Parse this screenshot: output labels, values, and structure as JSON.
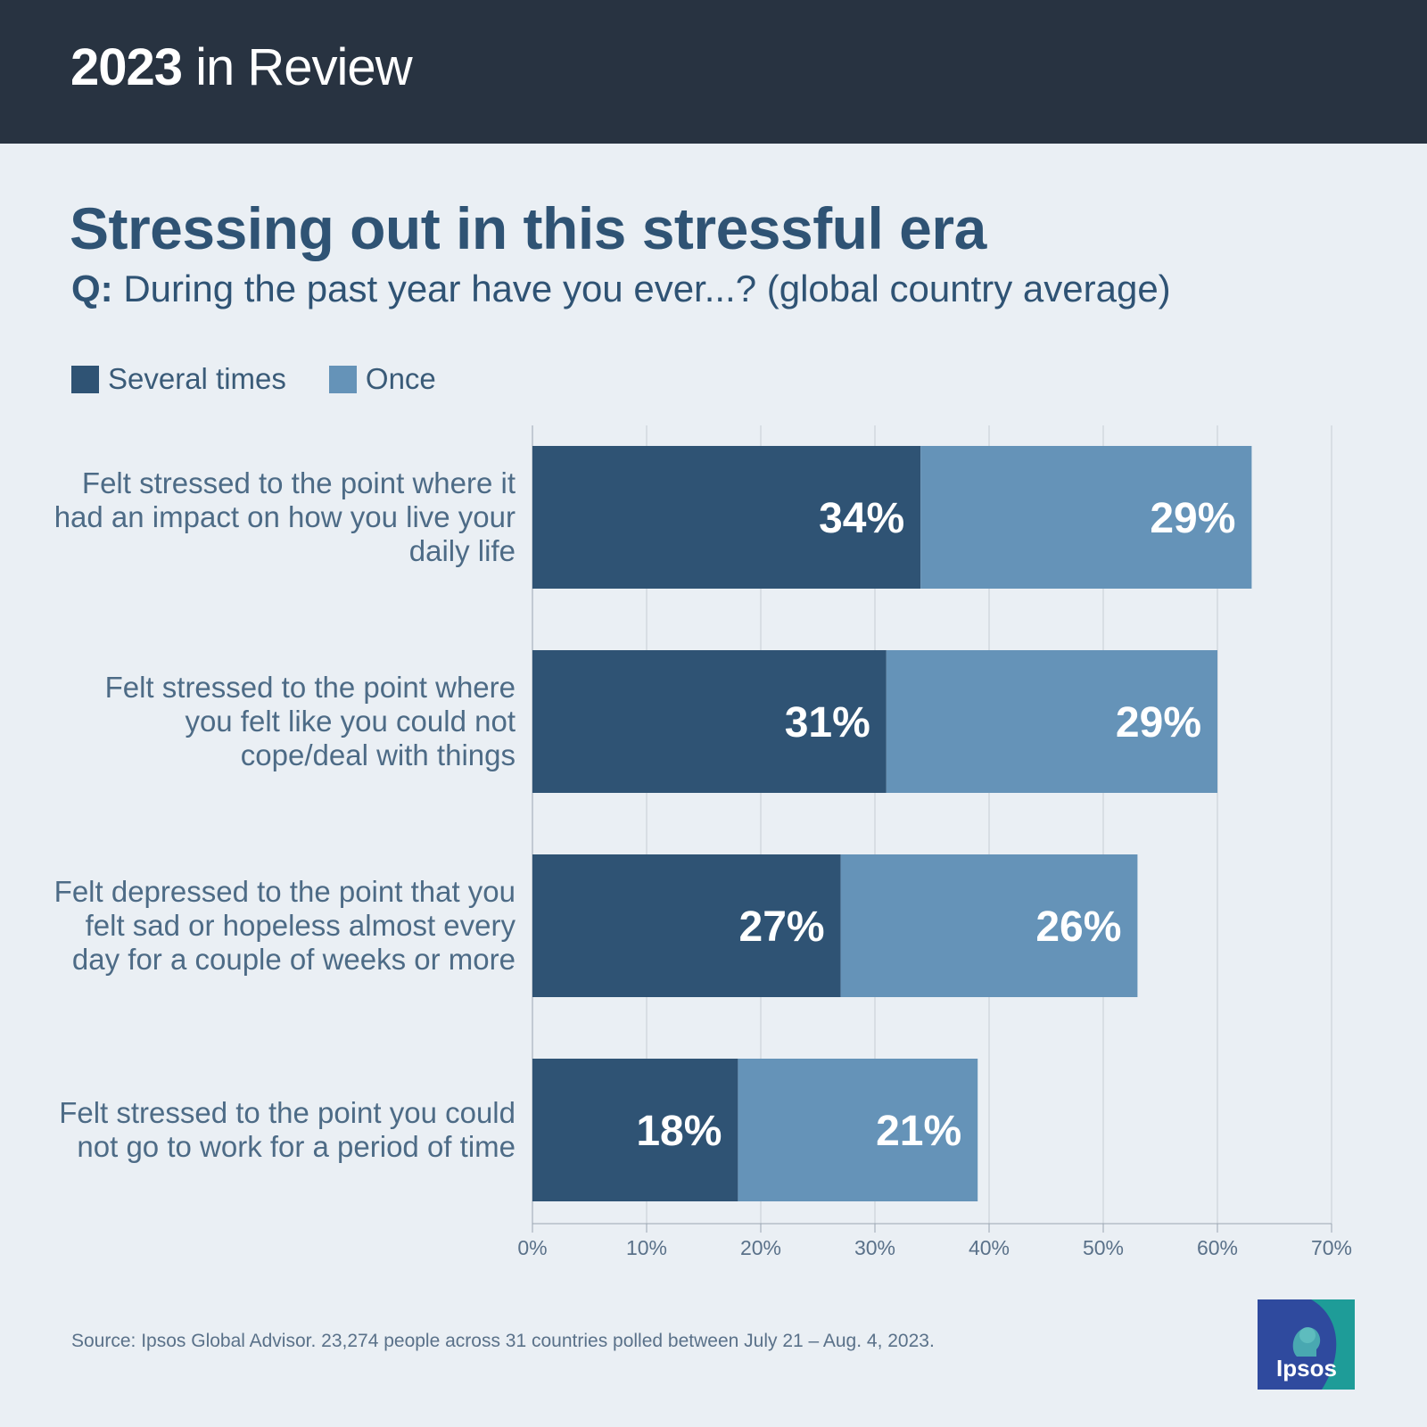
{
  "header": {
    "year": "2023",
    "rest": " in Review"
  },
  "question": {
    "prefix": "Q:",
    "text": " During the past year have you ever...? (global country average)"
  },
  "source": "Source: Ipsos Global Advisor. 23,274 people across 31 countries polled between July 21 – Aug. 4, 2023.",
  "logo": {
    "text": "Ipsos",
    "icon": "ipsos-head-icon"
  },
  "colors": {
    "several": "#2f5374",
    "once": "#6593b8",
    "header_bg": "#283341",
    "background": "#eaeff4"
  },
  "chart_data": {
    "type": "bar",
    "orientation": "horizontal",
    "stacked": true,
    "title": "Stressing out in this stressful era",
    "categories": [
      "Felt stressed to the point where it had an impact on how you live your daily life",
      "Felt stressed to the point where you felt like you could not cope/deal with things",
      "Felt depressed to the point that you felt sad or hopeless almost every day for a couple of weeks or more",
      "Felt stressed to the point you could not go to work for a period of time"
    ],
    "series": [
      {
        "name": "Several times",
        "values": [
          34,
          31,
          27,
          18
        ],
        "labels": [
          "34%",
          "31%",
          "27%",
          "18%"
        ],
        "color": "#2f5374"
      },
      {
        "name": "Once",
        "values": [
          29,
          29,
          26,
          21
        ],
        "labels": [
          "29%",
          "29%",
          "26%",
          "21%"
        ],
        "color": "#6593b8"
      }
    ],
    "xlim": [
      0,
      70
    ],
    "xticks": [
      "0%",
      "10%",
      "20%",
      "30%",
      "40%",
      "50%",
      "60%",
      "70%"
    ],
    "grid": true,
    "legend_position": "top-left"
  }
}
